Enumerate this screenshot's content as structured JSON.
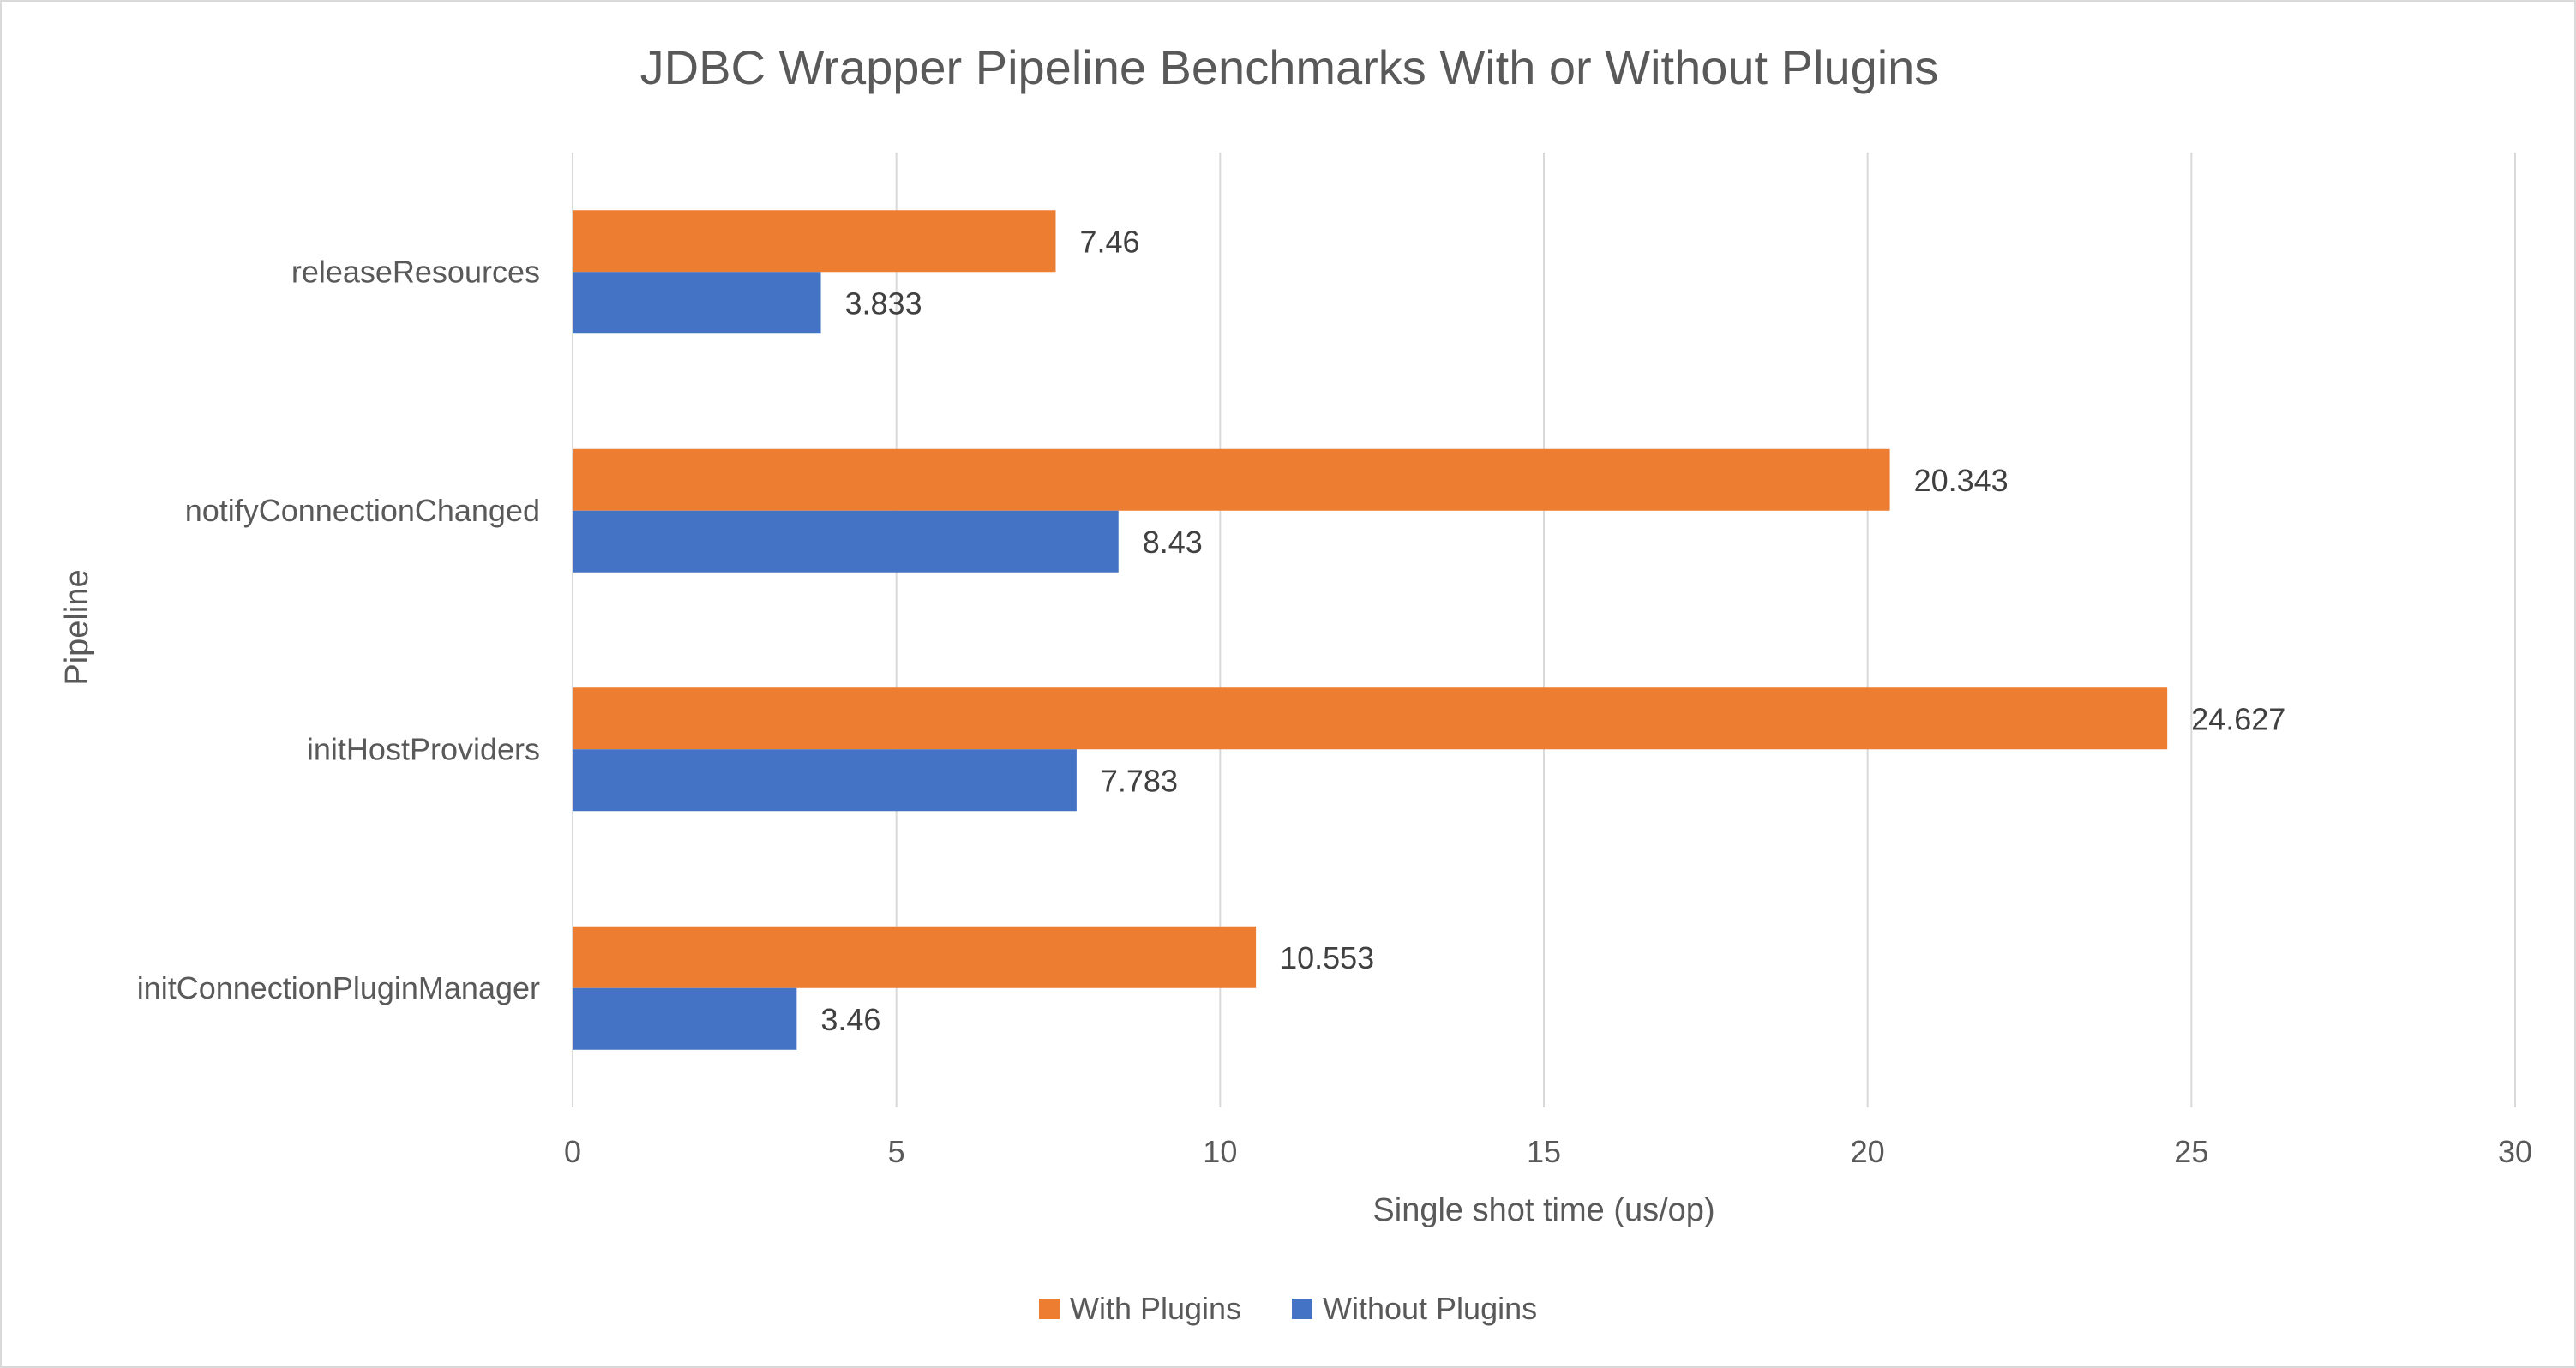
{
  "chart_data": {
    "type": "bar",
    "orientation": "horizontal",
    "title": "JDBC Wrapper Pipeline Benchmarks With or Without Plugins",
    "xlabel": "Single shot time (us/op)",
    "ylabel": "Pipeline",
    "xlim": [
      0,
      30
    ],
    "xticks": [
      0,
      5,
      10,
      15,
      20,
      25,
      30
    ],
    "grid": true,
    "legend_position": "bottom",
    "categories": [
      "releaseResources",
      "notifyConnectionChanged",
      "initHostProviders",
      "initConnectionPluginManager"
    ],
    "series": [
      {
        "name": "With Plugins",
        "color": "#ed7d31",
        "values": [
          7.46,
          20.343,
          24.627,
          10.553
        ]
      },
      {
        "name": "Without Plugins",
        "color": "#4472c4",
        "values": [
          3.833,
          8.43,
          7.783,
          3.46
        ]
      }
    ]
  }
}
